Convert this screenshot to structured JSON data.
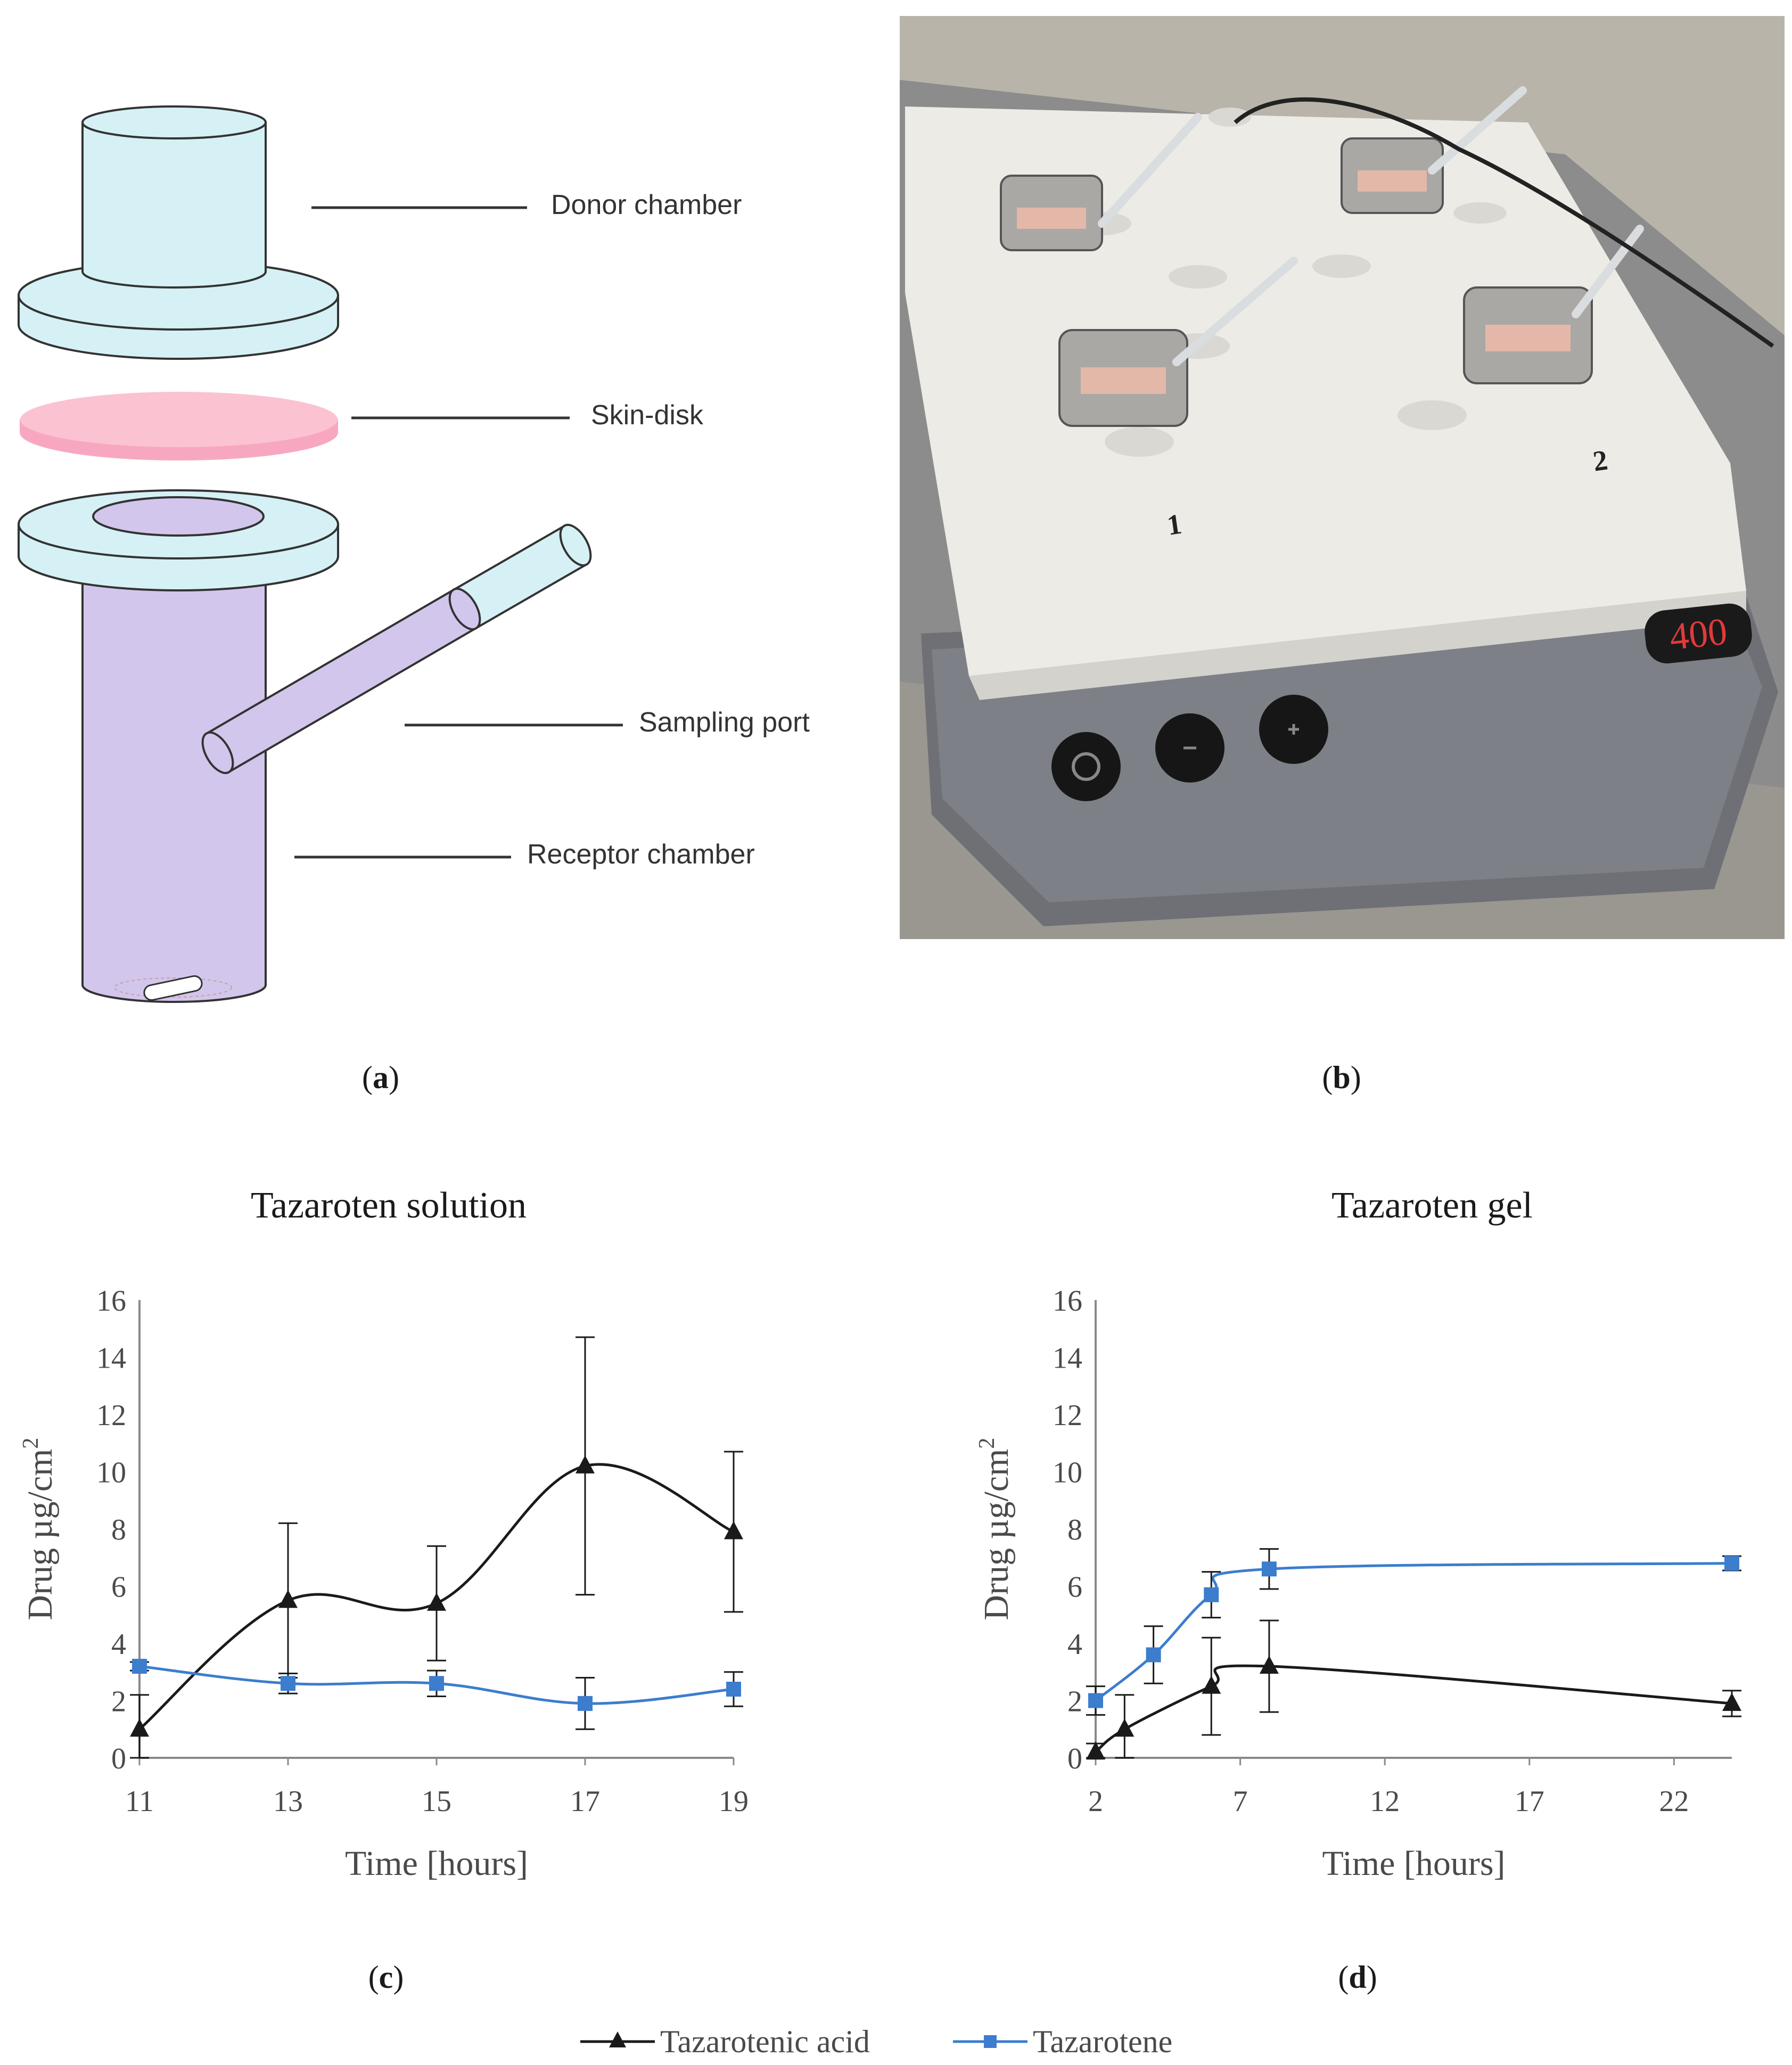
{
  "diagram": {
    "labels": {
      "donor": "Donor chamber",
      "skin": "Skin-disk",
      "port": "Sampling port",
      "receptor": "Receptor chamber"
    }
  },
  "photo": {
    "display_value": "400",
    "position_labels": [
      "1",
      "2"
    ],
    "button_icons": [
      "power-icon",
      "minus-icon",
      "plus-icon"
    ]
  },
  "panel_labels": {
    "a": "a",
    "b": "b",
    "c": "c",
    "d": "d"
  },
  "legend": {
    "items": [
      {
        "label": "Tazarotenic acid",
        "color": "#1a1a1a",
        "marker": "triangle"
      },
      {
        "label": "Tazarotene",
        "color": "#3c7dcd",
        "marker": "square"
      }
    ]
  },
  "chart_data": [
    {
      "type": "line",
      "title": "Tazaroten solution",
      "xlabel": "Time [hours]",
      "ylabel": "Drug µg/cm2",
      "ylabel_main": "Drug µg/cm",
      "ylabel_sup": "2",
      "xlim": [
        11,
        19
      ],
      "ylim": [
        0,
        16
      ],
      "xticks": [
        11,
        13,
        15,
        17,
        19
      ],
      "yticks": [
        0,
        2,
        4,
        6,
        8,
        10,
        12,
        14,
        16
      ],
      "grid": false,
      "series": [
        {
          "name": "Tazarotenic acid",
          "color": "#1a1a1a",
          "marker": "triangle",
          "x": [
            11,
            13,
            15,
            17,
            19
          ],
          "y": [
            1.0,
            5.5,
            5.4,
            10.2,
            7.9
          ],
          "error": [
            1.2,
            2.7,
            2.0,
            4.5,
            2.8
          ]
        },
        {
          "name": "Tazarotene",
          "color": "#3c7dcd",
          "marker": "square",
          "x": [
            11,
            13,
            15,
            17,
            19
          ],
          "y": [
            3.2,
            2.6,
            2.6,
            1.9,
            2.4
          ],
          "error": [
            0.15,
            0.35,
            0.45,
            0.9,
            0.6
          ]
        }
      ]
    },
    {
      "type": "line",
      "title": "Tazaroten gel",
      "xlabel": "Time [hours]",
      "ylabel": "Drug µg/cm2",
      "ylabel_main": "Drug µg/cm",
      "ylabel_sup": "2",
      "xlim": [
        2,
        24
      ],
      "ylim": [
        0,
        16
      ],
      "xticks": [
        2,
        7,
        12,
        17,
        22
      ],
      "yticks": [
        0,
        2,
        4,
        6,
        8,
        10,
        12,
        14,
        16
      ],
      "grid": false,
      "series": [
        {
          "name": "Tazarotenic acid",
          "color": "#1a1a1a",
          "marker": "triangle",
          "x": [
            2,
            3,
            6,
            8,
            24
          ],
          "y": [
            0.2,
            1.0,
            2.5,
            3.2,
            1.9
          ],
          "error": [
            0.3,
            1.2,
            1.7,
            1.6,
            0.45
          ]
        },
        {
          "name": "Tazarotene",
          "color": "#3c7dcd",
          "marker": "square",
          "x": [
            2,
            4,
            6,
            8,
            24
          ],
          "y": [
            2.0,
            3.6,
            5.7,
            6.6,
            6.8
          ],
          "error": [
            0.5,
            1.0,
            0.8,
            0.7,
            0.25
          ]
        }
      ]
    }
  ]
}
